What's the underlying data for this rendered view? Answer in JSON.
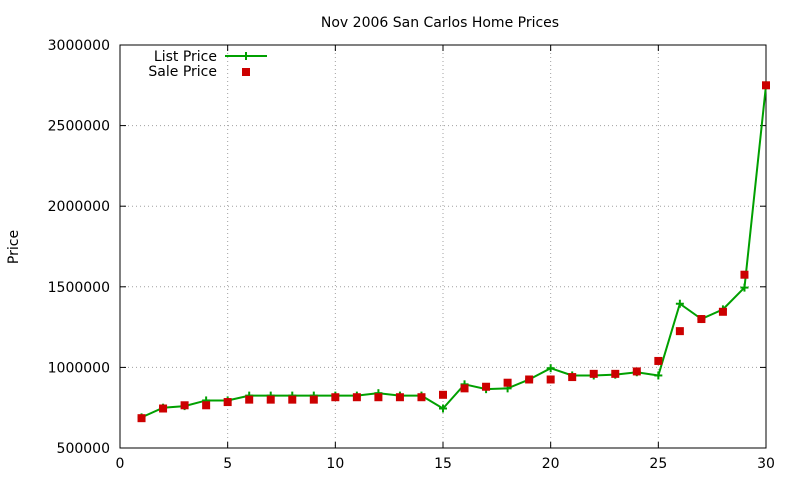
{
  "chart_data": {
    "type": "line",
    "title": "Nov 2006 San Carlos Home Prices",
    "xlabel": "",
    "ylabel": "Price",
    "xlim": [
      0,
      30
    ],
    "ylim": [
      500000,
      3000000
    ],
    "xticks": [
      0,
      5,
      10,
      15,
      20,
      25,
      30
    ],
    "yticks": [
      500000,
      1000000,
      1500000,
      2000000,
      2500000,
      3000000
    ],
    "grid": true,
    "legend_position": "top-left",
    "x": [
      1,
      2,
      3,
      4,
      5,
      6,
      7,
      8,
      9,
      10,
      11,
      12,
      13,
      14,
      15,
      16,
      17,
      18,
      19,
      20,
      21,
      22,
      23,
      24,
      25,
      26,
      27,
      28,
      29,
      30
    ],
    "series": [
      {
        "name": "List Price",
        "style": "line-plus",
        "color": "#00a000",
        "values": [
          690000,
          750000,
          760000,
          795000,
          795000,
          825000,
          825000,
          825000,
          825000,
          825000,
          825000,
          840000,
          825000,
          825000,
          745000,
          895000,
          865000,
          870000,
          925000,
          995000,
          950000,
          950000,
          955000,
          970000,
          950000,
          1395000,
          1300000,
          1360000,
          1495000,
          2750000
        ]
      },
      {
        "name": "Sale Price",
        "style": "square",
        "color": "#cc0000",
        "values": [
          685000,
          745000,
          765000,
          765000,
          785000,
          800000,
          800000,
          800000,
          800000,
          815000,
          815000,
          815000,
          815000,
          815000,
          830000,
          870000,
          880000,
          905000,
          925000,
          925000,
          940000,
          960000,
          960000,
          975000,
          1040000,
          1225000,
          1300000,
          1345000,
          1575000,
          2750000
        ]
      }
    ]
  }
}
